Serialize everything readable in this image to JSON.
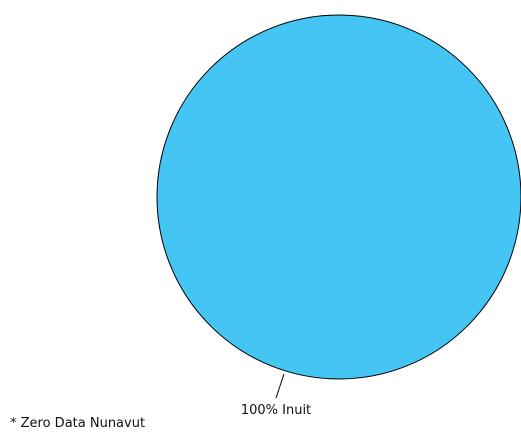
{
  "chart_data": {
    "type": "pie",
    "slices": [
      {
        "label": "100% Inuit",
        "value": 100,
        "color": "#45C5F3"
      }
    ],
    "outline_color": "#000000"
  },
  "footnote": "* Zero Data Nunavut"
}
